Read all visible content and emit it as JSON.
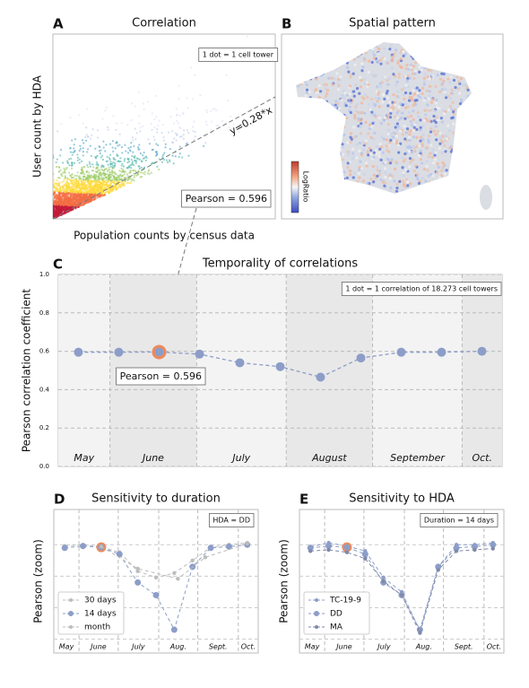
{
  "chart_data": [
    {
      "type": "density",
      "panel": "A",
      "title": "Correlation",
      "xlabel": "Population counts  by census data",
      "ylabel": "User count by HDA",
      "annotations": [
        "1 dot = 1 cell tower",
        "y=0.28*x",
        "Pearson = 0.596"
      ]
    },
    {
      "type": "map",
      "panel": "B",
      "title": "Spatial pattern",
      "colorbar_label": "LogRatio"
    },
    {
      "type": "line",
      "panel": "C",
      "title": "Temporality of correlations",
      "ylabel": "Pearson correlation coefficient",
      "annotations": [
        "1 dot = 1 correlation of 18.273 cell towers",
        "Pearson = 0.596"
      ],
      "x": [
        0,
        1,
        2,
        3,
        4,
        5,
        6,
        7,
        8,
        9,
        10
      ],
      "xlim": [
        -0.5,
        10.5
      ],
      "xticks": [
        0.78,
        2.93,
        5.15,
        7.29,
        9.51
      ],
      "months": [
        "May",
        "June",
        "July",
        "August",
        "September",
        "Oct."
      ],
      "ylim": [
        0,
        1
      ],
      "yticks": [
        {
          "value": 0,
          "label": "0.0"
        },
        {
          "value": 0.2,
          "label": "0.2"
        },
        {
          "value": 0.4,
          "label": "0.4"
        },
        {
          "value": 0.6,
          "label": "0.6"
        },
        {
          "value": 0.8,
          "label": "0.8"
        },
        {
          "value": 1,
          "label": "1.0"
        }
      ],
      "grid": true,
      "shaded_bands": true,
      "color": "#8c9dc8",
      "highlight": {
        "index": 2
      },
      "highlight_color": "#ee8a5a",
      "values": [
        0.595,
        0.595,
        0.596,
        0.585,
        0.54,
        0.52,
        0.465,
        0.565,
        0.595,
        0.595,
        0.6
      ]
    },
    {
      "type": "line",
      "panel": "D",
      "title": "Sensitivity to duration",
      "ylabel": "Pearson (zoom)",
      "annotations": [
        "HDA = DD"
      ],
      "x": [
        0,
        1,
        2,
        3,
        4,
        5,
        6,
        7,
        8,
        9,
        10
      ],
      "xlim": [
        -0.6,
        10.6
      ],
      "xticks": [
        0.78,
        2.93,
        5.15,
        7.29,
        9.51
      ],
      "months": [
        "May",
        "June",
        "July",
        "Aug.",
        "Sept.",
        "Oct."
      ],
      "ylim": [
        0.428,
        0.656
      ],
      "ygrid": [
        0.45,
        0.5,
        0.55,
        0.6
      ],
      "legend": "lower left",
      "highlight": {
        "series": 1,
        "index": 2
      },
      "highlight_color": "#ee8a5a",
      "series": [
        {
          "name": "30 days",
          "color": "#bdbdbd",
          "values": [
            0.598,
            0.6,
            0.597,
            0.588,
            0.558,
            0.548,
            0.555,
            0.575,
            0.596,
            0.6,
            0.603
          ]
        },
        {
          "name": "14 days",
          "color": "#8c9dc8",
          "values": [
            0.595,
            0.598,
            0.596,
            0.585,
            0.54,
            0.52,
            0.465,
            0.565,
            0.595,
            0.597,
            0.6
          ]
        },
        {
          "name": "month",
          "color": "#bdbdbd",
          "x": [
            2,
            4,
            6.2,
            7.7,
            10
          ],
          "values": [
            0.597,
            0.562,
            0.546,
            0.58,
            0.602
          ]
        }
      ]
    },
    {
      "type": "line",
      "panel": "E",
      "title": "Sensitivity to HDA",
      "ylabel": "Pearson (zoom)",
      "annotations": [
        "Duration = 14 days"
      ],
      "x": [
        0,
        1,
        2,
        3,
        4,
        5,
        6,
        7,
        8,
        9,
        10
      ],
      "xlim": [
        -0.6,
        10.6
      ],
      "xticks": [
        0.78,
        2.93,
        5.15,
        7.29,
        9.51
      ],
      "months": [
        "May",
        "June",
        "July",
        "Aug.",
        "Sept.",
        "Oct."
      ],
      "ylim": [
        0.428,
        0.656
      ],
      "ygrid": [
        0.45,
        0.5,
        0.55,
        0.6
      ],
      "legend": "lower left",
      "highlight": {
        "series": 1,
        "index": 2
      },
      "highlight_color": "#ee8a5a",
      "series": [
        {
          "name": "TC-19-9",
          "color": "#8c9dc8",
          "values": [
            0.597,
            0.603,
            0.598,
            0.59,
            0.548,
            0.525,
            0.463,
            0.565,
            0.6,
            0.6,
            0.603
          ]
        },
        {
          "name": "DD",
          "color": "#8c9dc8",
          "values": [
            0.595,
            0.598,
            0.596,
            0.585,
            0.54,
            0.52,
            0.465,
            0.565,
            0.595,
            0.597,
            0.6
          ]
        },
        {
          "name": "MA",
          "color": "#7f8aa8",
          "values": [
            0.59,
            0.592,
            0.588,
            0.578,
            0.542,
            0.52,
            0.46,
            0.56,
            0.59,
            0.592,
            0.594
          ]
        }
      ]
    }
  ]
}
